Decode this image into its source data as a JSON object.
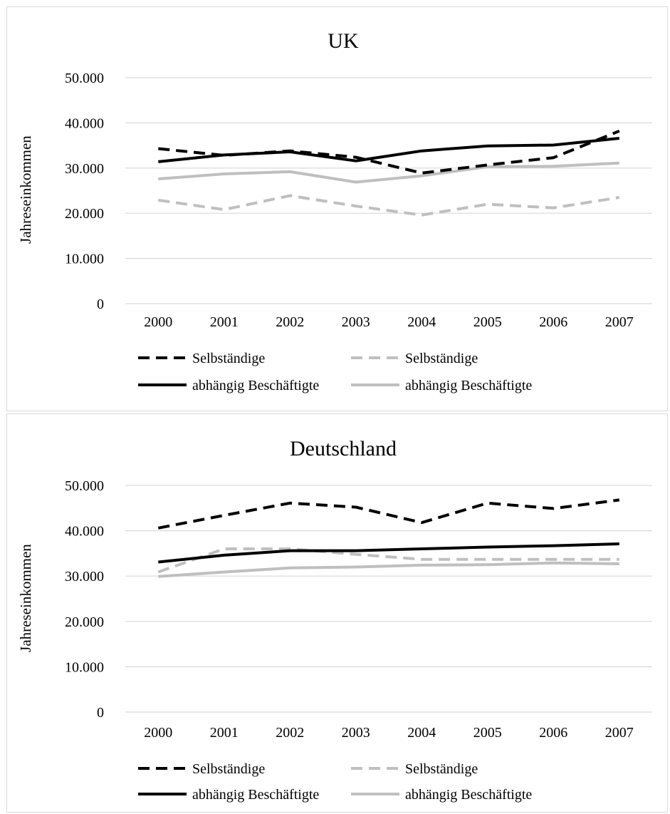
{
  "chart_data": [
    {
      "type": "line",
      "title": "UK",
      "xlabel": "",
      "ylabel": "Jahreseinkommen",
      "ylim": [
        0,
        50000
      ],
      "grid": true,
      "legend_position": "bottom",
      "y_tick_labels": [
        "0",
        "10.000",
        "20.000",
        "30.000",
        "40.000",
        "50.000"
      ],
      "categories": [
        "2000",
        "2001",
        "2002",
        "2003",
        "2004",
        "2005",
        "2006",
        "2007"
      ],
      "series": [
        {
          "name": "Selbständige",
          "color": "#000000",
          "style": "dashed",
          "values": [
            34300,
            32800,
            33800,
            32400,
            28900,
            30700,
            32300,
            38200
          ]
        },
        {
          "name": "Selbständige",
          "color": "#bfbfbf",
          "style": "dashed",
          "values": [
            22900,
            20800,
            23900,
            21600,
            19600,
            22000,
            21200,
            23500
          ]
        },
        {
          "name": "abhängig Beschäftigte",
          "color": "#000000",
          "style": "solid",
          "values": [
            31400,
            32900,
            33600,
            31600,
            33800,
            34900,
            35100,
            36600
          ]
        },
        {
          "name": "abhängig Beschäftigte",
          "color": "#bfbfbf",
          "style": "solid",
          "values": [
            27600,
            28700,
            29200,
            26900,
            28300,
            30300,
            30400,
            31100
          ]
        }
      ]
    },
    {
      "type": "line",
      "title": "Deutschland",
      "xlabel": "",
      "ylabel": "Jahreseinkommen",
      "ylim": [
        0,
        50000
      ],
      "grid": true,
      "legend_position": "bottom",
      "y_tick_labels": [
        "0",
        "10.000",
        "20.000",
        "30.000",
        "40.000",
        "50.000"
      ],
      "categories": [
        "2000",
        "2001",
        "2002",
        "2003",
        "2004",
        "2005",
        "2006",
        "2007"
      ],
      "series": [
        {
          "name": "Selbständige",
          "color": "#000000",
          "style": "dashed",
          "values": [
            40600,
            43400,
            46100,
            45200,
            41800,
            46100,
            44900,
            46800
          ]
        },
        {
          "name": "Selbständige",
          "color": "#bfbfbf",
          "style": "dashed",
          "values": [
            30900,
            36000,
            36000,
            34800,
            33700,
            33700,
            33700,
            33700
          ]
        },
        {
          "name": "abhängig Beschäftigte",
          "color": "#000000",
          "style": "solid",
          "values": [
            33100,
            34600,
            35600,
            35600,
            36000,
            36400,
            36700,
            37100
          ]
        },
        {
          "name": "abhängig Beschäftigte",
          "color": "#bfbfbf",
          "style": "solid",
          "values": [
            29900,
            30900,
            31800,
            32000,
            32400,
            32500,
            32900,
            32700
          ]
        }
      ]
    }
  ]
}
